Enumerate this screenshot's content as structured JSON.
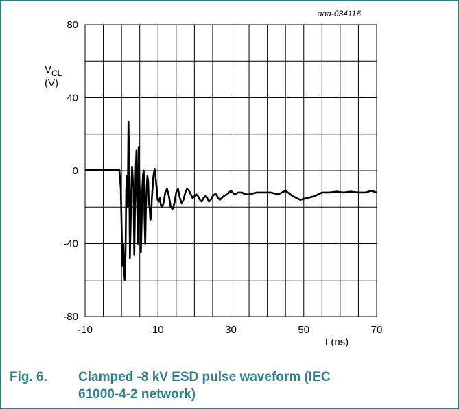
{
  "figure": {
    "id_label": "aaa-034116",
    "caption_number": "Fig. 6.",
    "caption_line1": "Clamped -8 kV ESD pulse waveform (IEC",
    "caption_line2": "61000-4-2 network)",
    "border_color": "#2a7a8c",
    "caption_color": "#2a7f8f"
  },
  "chart_data": {
    "type": "line",
    "title": "",
    "ylabel_main": "V",
    "ylabel_sub": "CL",
    "ylabel_unit": "(V)",
    "xlabel": "t (ns)",
    "xlim": [
      -10,
      70
    ],
    "ylim": [
      -80,
      80
    ],
    "x_ticks": [
      -10,
      10,
      30,
      50,
      70
    ],
    "y_ticks": [
      80,
      40,
      0,
      -40,
      -80
    ],
    "x_grid_step": 5,
    "y_grid_step": 20,
    "grid": true,
    "series": [
      {
        "color": "#000000",
        "x": [
          -10,
          -7,
          -4,
          -2,
          -0.6,
          -0.2,
          0.1,
          0.3,
          0.5,
          0.7,
          0.9,
          1.1,
          1.3,
          1.5,
          1.7,
          1.9,
          2.1,
          2.3,
          2.5,
          2.7,
          2.9,
          3.1,
          3.3,
          3.5,
          3.7,
          3.9,
          4.1,
          4.3,
          4.5,
          4.7,
          4.9,
          5.1,
          5.3,
          5.5,
          5.7,
          5.9,
          6.1,
          6.3,
          6.5,
          6.7,
          6.9,
          7.1,
          7.3,
          7.5,
          7.7,
          7.9,
          8.1,
          8.3,
          8.5,
          8.7,
          8.9,
          9.1,
          9.3,
          9.6,
          9.9,
          10.2,
          10.5,
          10.8,
          11.1,
          11.5,
          12.0,
          12.5,
          13.0,
          13.5,
          14.0,
          14.5,
          15.0,
          15.5,
          16.0,
          16.5,
          17.0,
          17.5,
          18.0,
          18.5,
          19.0,
          19.5,
          20.0,
          20.5,
          21.0,
          21.5,
          22.0,
          22.5,
          23.0,
          23.5,
          24.0,
          24.5,
          25.0,
          25.5,
          26.0,
          26.5,
          27.0,
          27.5,
          28.0,
          29,
          30,
          31,
          32,
          33,
          34,
          35,
          37,
          39,
          41,
          43,
          45,
          47,
          49,
          51,
          53,
          55,
          57,
          59,
          61,
          63,
          65,
          67,
          68.5,
          70
        ],
        "y": [
          0.5,
          0.5,
          0.4,
          0.5,
          0.5,
          -10,
          -38,
          -52,
          -40,
          -56,
          -60,
          -45,
          -10,
          -3,
          -20,
          27,
          5,
          -48,
          -30,
          -10,
          2,
          -5,
          -10,
          -46,
          -20,
          0,
          11,
          -20,
          -40,
          13,
          -5,
          -20,
          -45,
          -30,
          -10,
          -2,
          0,
          -25,
          -40,
          -20,
          -10,
          -3,
          -6,
          -18,
          -20,
          -27,
          -26,
          -16,
          -10,
          -4,
          -1,
          1,
          -3,
          -9,
          -16,
          -17,
          -15,
          -19,
          -20,
          -18,
          -12,
          -10,
          -14,
          -20,
          -21,
          -18,
          -12,
          -10,
          -15,
          -18,
          -16,
          -12,
          -10,
          -11,
          -13,
          -15,
          -14,
          -13,
          -14,
          -16,
          -17,
          -15,
          -14,
          -15,
          -17,
          -16,
          -14,
          -13,
          -13,
          -15,
          -16,
          -15,
          -14,
          -13,
          -11,
          -13,
          -12,
          -12,
          -13,
          -13,
          -12,
          -12,
          -12,
          -13,
          -11,
          -14,
          -16,
          -15,
          -14,
          -12,
          -12,
          -11.5,
          -12,
          -11.5,
          -12,
          -12,
          -11,
          -12
        ]
      }
    ]
  }
}
